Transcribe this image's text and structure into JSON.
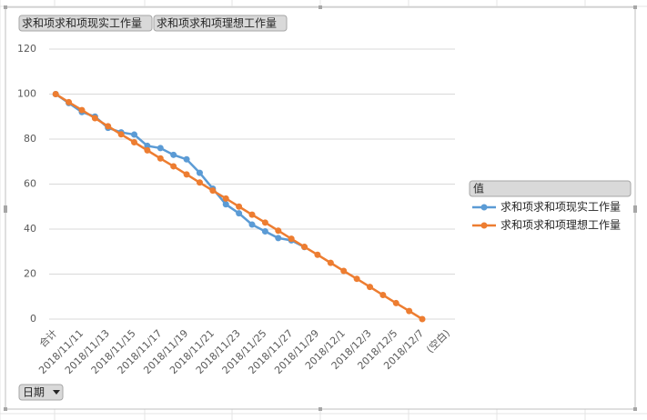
{
  "chart_data": {
    "type": "line",
    "value_buttons": [
      "求和项求和项现实工作量",
      "求和项求和项理想工作量"
    ],
    "axis_field": "日期",
    "legend_title": "值",
    "categories": [
      "合计",
      null,
      "2018/11/11",
      null,
      "2018/11/13",
      null,
      "2018/11/15",
      null,
      "2018/11/17",
      null,
      "2018/11/19",
      null,
      "2018/11/21",
      null,
      "2018/11/23",
      null,
      "2018/11/25",
      null,
      "2018/11/27",
      null,
      "2018/11/29",
      null,
      "2018/12/1",
      null,
      "2018/12/3",
      null,
      "2018/12/5",
      null,
      "2018/12/7",
      null,
      "(空白)"
    ],
    "series": [
      {
        "name": "求和项求和项现实工作量",
        "color": "#5b9bd5",
        "values": [
          100,
          96,
          92,
          90,
          85,
          83,
          82,
          77,
          76,
          73,
          71,
          65,
          58,
          51,
          47,
          42,
          39,
          36,
          35,
          32,
          null,
          null,
          null,
          null,
          null,
          null,
          null,
          null,
          null,
          null,
          null
        ]
      },
      {
        "name": "求和项求和项理想工作量",
        "color": "#ed7d31",
        "values": [
          100,
          96.4,
          92.9,
          89.3,
          85.7,
          82.1,
          78.6,
          75,
          71.4,
          67.9,
          64.3,
          60.7,
          57.1,
          53.6,
          50,
          46.4,
          42.9,
          39.3,
          35.7,
          32.1,
          28.6,
          25,
          21.4,
          17.9,
          14.3,
          10.7,
          7.1,
          3.6,
          0,
          null,
          null
        ]
      }
    ],
    "ylim": [
      0,
      120
    ],
    "yticks": [
      0,
      20,
      40,
      60,
      80,
      100,
      120
    ],
    "grid": true
  }
}
